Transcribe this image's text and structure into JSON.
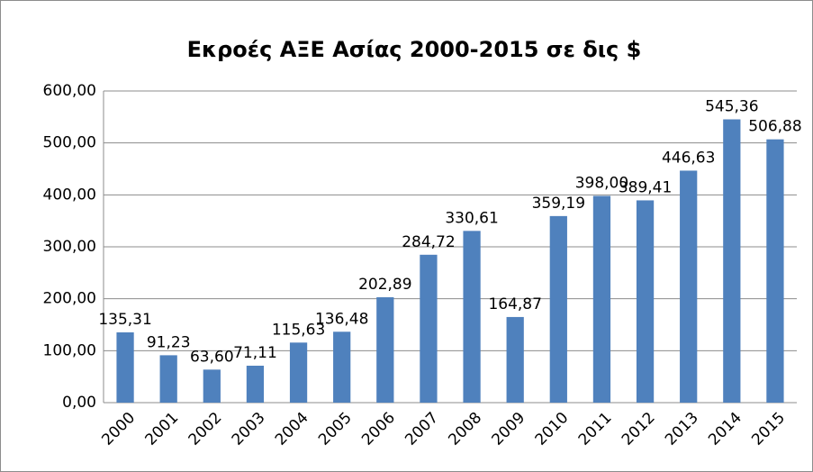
{
  "chart_data": {
    "type": "bar",
    "title": "Εκροές ΑΞΕ Ασίας 2000-2015 σε δις $",
    "categories": [
      "2000",
      "2001",
      "2002",
      "2003",
      "2004",
      "2005",
      "2006",
      "2007",
      "2008",
      "2009",
      "2010",
      "2011",
      "2012",
      "2013",
      "2014",
      "2015"
    ],
    "values": [
      135.31,
      91.23,
      63.6,
      71.11,
      115.63,
      136.48,
      202.89,
      284.72,
      330.61,
      164.87,
      359.19,
      398.0,
      389.41,
      446.63,
      545.36,
      506.88
    ],
    "value_labels": [
      "135,31",
      "91,23",
      "63,60",
      "71,11",
      "115,63",
      "136,48",
      "202,89",
      "284,72",
      "330,61",
      "164,87",
      "359,19",
      "398,00",
      "389,41",
      "446,63",
      "545,36",
      "506,88"
    ],
    "color": "#4f81bd",
    "ylim": [
      0,
      600
    ],
    "yticks": [
      {
        "value": 0,
        "label": "0,00"
      },
      {
        "value": 100,
        "label": "100,00"
      },
      {
        "value": 200,
        "label": "200,00"
      },
      {
        "value": 300,
        "label": "300,00"
      },
      {
        "value": 400,
        "label": "400,00"
      },
      {
        "value": 500,
        "label": "500,00"
      },
      {
        "value": 600,
        "label": "600,00"
      }
    ],
    "grid": true
  }
}
